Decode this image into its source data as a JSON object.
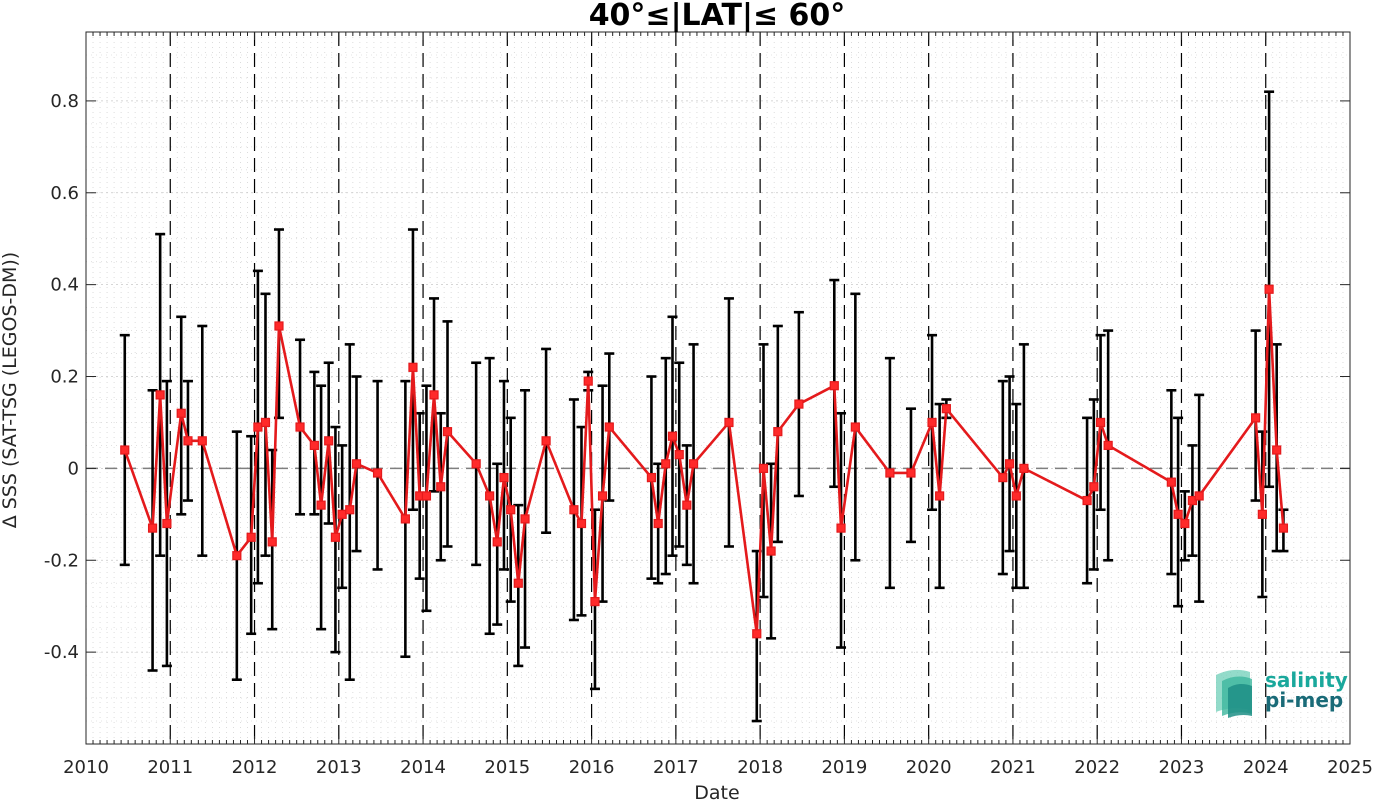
{
  "chart_data": {
    "type": "scatter",
    "title": "40°≤|LAT|≤ 60°",
    "xlabel": "Date",
    "ylabel": "Δ SSS (SAT-TSG (LEGOS-DM))",
    "xlim": [
      2010,
      2025
    ],
    "ylim": [
      -0.6,
      0.95
    ],
    "x_ticks": [
      "2010",
      "2011",
      "2012",
      "2013",
      "2014",
      "2015",
      "2016",
      "2017",
      "2018",
      "2019",
      "2020",
      "2021",
      "2022",
      "2023",
      "2024",
      "2025"
    ],
    "y_ticks": [
      "-0.4",
      "-0.2",
      "0",
      "0.2",
      "0.4",
      "0.6",
      "0.8"
    ],
    "grid": "minor dotted",
    "year_boundary_lines": "dashed vertical lines at each year",
    "zero_line": "dashed horizontal line at 0",
    "series": [
      {
        "color": "#e41a1c",
        "errorbar_color": "#000000",
        "marker": "square",
        "points": [
          {
            "x": 2010.46,
            "y": 0.04,
            "lo": -0.21,
            "hi": 0.29
          },
          {
            "x": 2010.79,
            "y": -0.13,
            "lo": -0.44,
            "hi": 0.17
          },
          {
            "x": 2010.88,
            "y": 0.16,
            "lo": -0.19,
            "hi": 0.51
          },
          {
            "x": 2010.96,
            "y": -0.12,
            "lo": -0.43,
            "hi": 0.19
          },
          {
            "x": 2011.13,
            "y": 0.12,
            "lo": -0.1,
            "hi": 0.33
          },
          {
            "x": 2011.21,
            "y": 0.06,
            "lo": -0.07,
            "hi": 0.19
          },
          {
            "x": 2011.38,
            "y": 0.06,
            "lo": -0.19,
            "hi": 0.31
          },
          {
            "x": 2011.79,
            "y": -0.19,
            "lo": -0.46,
            "hi": 0.08
          },
          {
            "x": 2011.96,
            "y": -0.15,
            "lo": -0.36,
            "hi": 0.07
          },
          {
            "x": 2012.04,
            "y": 0.09,
            "lo": -0.25,
            "hi": 0.43
          },
          {
            "x": 2012.13,
            "y": 0.1,
            "lo": -0.19,
            "hi": 0.38
          },
          {
            "x": 2012.21,
            "y": -0.16,
            "lo": -0.35,
            "hi": 0.04
          },
          {
            "x": 2012.29,
            "y": 0.31,
            "lo": 0.11,
            "hi": 0.52
          },
          {
            "x": 2012.54,
            "y": 0.09,
            "lo": -0.1,
            "hi": 0.28
          },
          {
            "x": 2012.71,
            "y": 0.05,
            "lo": -0.1,
            "hi": 0.21
          },
          {
            "x": 2012.79,
            "y": -0.08,
            "lo": -0.35,
            "hi": 0.18
          },
          {
            "x": 2012.88,
            "y": 0.06,
            "lo": -0.12,
            "hi": 0.23
          },
          {
            "x": 2012.96,
            "y": -0.15,
            "lo": -0.4,
            "hi": 0.09
          },
          {
            "x": 2013.04,
            "y": -0.1,
            "lo": -0.26,
            "hi": 0.05
          },
          {
            "x": 2013.13,
            "y": -0.09,
            "lo": -0.46,
            "hi": 0.27
          },
          {
            "x": 2013.21,
            "y": 0.01,
            "lo": -0.18,
            "hi": 0.2
          },
          {
            "x": 2013.46,
            "y": -0.01,
            "lo": -0.22,
            "hi": 0.19
          },
          {
            "x": 2013.79,
            "y": -0.11,
            "lo": -0.41,
            "hi": 0.19
          },
          {
            "x": 2013.88,
            "y": 0.22,
            "lo": -0.09,
            "hi": 0.52
          },
          {
            "x": 2013.96,
            "y": -0.06,
            "lo": -0.24,
            "hi": 0.12
          },
          {
            "x": 2014.04,
            "y": -0.06,
            "lo": -0.31,
            "hi": 0.18
          },
          {
            "x": 2014.13,
            "y": 0.16,
            "lo": -0.05,
            "hi": 0.37
          },
          {
            "x": 2014.21,
            "y": -0.04,
            "lo": -0.2,
            "hi": 0.12
          },
          {
            "x": 2014.29,
            "y": 0.08,
            "lo": -0.17,
            "hi": 0.32
          },
          {
            "x": 2014.63,
            "y": 0.01,
            "lo": -0.21,
            "hi": 0.23
          },
          {
            "x": 2014.79,
            "y": -0.06,
            "lo": -0.36,
            "hi": 0.24
          },
          {
            "x": 2014.88,
            "y": -0.16,
            "lo": -0.34,
            "hi": 0.01
          },
          {
            "x": 2014.96,
            "y": -0.02,
            "lo": -0.22,
            "hi": 0.19
          },
          {
            "x": 2015.04,
            "y": -0.09,
            "lo": -0.29,
            "hi": 0.11
          },
          {
            "x": 2015.13,
            "y": -0.25,
            "lo": -0.43,
            "hi": -0.08
          },
          {
            "x": 2015.21,
            "y": -0.11,
            "lo": -0.39,
            "hi": 0.17
          },
          {
            "x": 2015.46,
            "y": 0.06,
            "lo": -0.14,
            "hi": 0.26
          },
          {
            "x": 2015.79,
            "y": -0.09,
            "lo": -0.33,
            "hi": 0.15
          },
          {
            "x": 2015.88,
            "y": -0.12,
            "lo": -0.32,
            "hi": 0.09
          },
          {
            "x": 2015.96,
            "y": 0.19,
            "lo": 0.17,
            "hi": 0.21
          },
          {
            "x": 2016.04,
            "y": -0.29,
            "lo": -0.48,
            "hi": -0.09
          },
          {
            "x": 2016.13,
            "y": -0.06,
            "lo": -0.29,
            "hi": 0.18
          },
          {
            "x": 2016.21,
            "y": 0.09,
            "lo": -0.07,
            "hi": 0.25
          },
          {
            "x": 2016.71,
            "y": -0.02,
            "lo": -0.24,
            "hi": 0.2
          },
          {
            "x": 2016.79,
            "y": -0.12,
            "lo": -0.25,
            "hi": 0.01
          },
          {
            "x": 2016.88,
            "y": 0.01,
            "lo": -0.23,
            "hi": 0.24
          },
          {
            "x": 2016.96,
            "y": 0.07,
            "lo": -0.19,
            "hi": 0.33
          },
          {
            "x": 2017.04,
            "y": 0.03,
            "lo": -0.17,
            "hi": 0.23
          },
          {
            "x": 2017.13,
            "y": -0.08,
            "lo": -0.21,
            "hi": 0.05
          },
          {
            "x": 2017.21,
            "y": 0.01,
            "lo": -0.25,
            "hi": 0.27
          },
          {
            "x": 2017.63,
            "y": 0.1,
            "lo": -0.17,
            "hi": 0.37
          },
          {
            "x": 2017.96,
            "y": -0.36,
            "lo": -0.55,
            "hi": -0.18
          },
          {
            "x": 2018.04,
            "y": 0.0,
            "lo": -0.28,
            "hi": 0.27
          },
          {
            "x": 2018.13,
            "y": -0.18,
            "lo": -0.37,
            "hi": 0.01
          },
          {
            "x": 2018.21,
            "y": 0.08,
            "lo": -0.16,
            "hi": 0.31
          },
          {
            "x": 2018.46,
            "y": 0.14,
            "lo": -0.06,
            "hi": 0.34
          },
          {
            "x": 2018.88,
            "y": 0.18,
            "lo": -0.04,
            "hi": 0.41
          },
          {
            "x": 2018.96,
            "y": -0.13,
            "lo": -0.39,
            "hi": 0.12
          },
          {
            "x": 2019.13,
            "y": 0.09,
            "lo": -0.2,
            "hi": 0.38
          },
          {
            "x": 2019.54,
            "y": -0.01,
            "lo": -0.26,
            "hi": 0.24
          },
          {
            "x": 2019.79,
            "y": -0.01,
            "lo": -0.16,
            "hi": 0.13
          },
          {
            "x": 2020.04,
            "y": 0.1,
            "lo": -0.09,
            "hi": 0.29
          },
          {
            "x": 2020.13,
            "y": -0.06,
            "lo": -0.26,
            "hi": 0.14
          },
          {
            "x": 2020.21,
            "y": 0.13,
            "lo": 0.11,
            "hi": 0.15
          },
          {
            "x": 2020.88,
            "y": -0.02,
            "lo": -0.23,
            "hi": 0.19
          },
          {
            "x": 2020.96,
            "y": 0.01,
            "lo": -0.18,
            "hi": 0.2
          },
          {
            "x": 2021.04,
            "y": -0.06,
            "lo": -0.26,
            "hi": 0.14
          },
          {
            "x": 2021.13,
            "y": 0.0,
            "lo": -0.26,
            "hi": 0.27
          },
          {
            "x": 2021.88,
            "y": -0.07,
            "lo": -0.25,
            "hi": 0.11
          },
          {
            "x": 2021.96,
            "y": -0.04,
            "lo": -0.22,
            "hi": 0.15
          },
          {
            "x": 2022.04,
            "y": 0.1,
            "lo": -0.09,
            "hi": 0.29
          },
          {
            "x": 2022.13,
            "y": 0.05,
            "lo": -0.2,
            "hi": 0.3
          },
          {
            "x": 2022.88,
            "y": -0.03,
            "lo": -0.23,
            "hi": 0.17
          },
          {
            "x": 2022.96,
            "y": -0.1,
            "lo": -0.3,
            "hi": 0.11
          },
          {
            "x": 2023.04,
            "y": -0.12,
            "lo": -0.2,
            "hi": -0.05
          },
          {
            "x": 2023.13,
            "y": -0.07,
            "lo": -0.19,
            "hi": 0.05
          },
          {
            "x": 2023.21,
            "y": -0.06,
            "lo": -0.29,
            "hi": 0.16
          },
          {
            "x": 2023.88,
            "y": 0.11,
            "lo": -0.07,
            "hi": 0.3
          },
          {
            "x": 2023.96,
            "y": -0.1,
            "lo": -0.28,
            "hi": 0.08
          },
          {
            "x": 2024.04,
            "y": 0.39,
            "lo": -0.04,
            "hi": 0.82
          },
          {
            "x": 2024.13,
            "y": 0.04,
            "lo": -0.18,
            "hi": 0.27
          },
          {
            "x": 2024.21,
            "y": -0.13,
            "lo": -0.18,
            "hi": -0.09
          }
        ]
      }
    ]
  },
  "logo": {
    "line1": "salinity",
    "line2": "pi-mep",
    "color1": "#1aa89c",
    "color2": "#1a6b78"
  }
}
